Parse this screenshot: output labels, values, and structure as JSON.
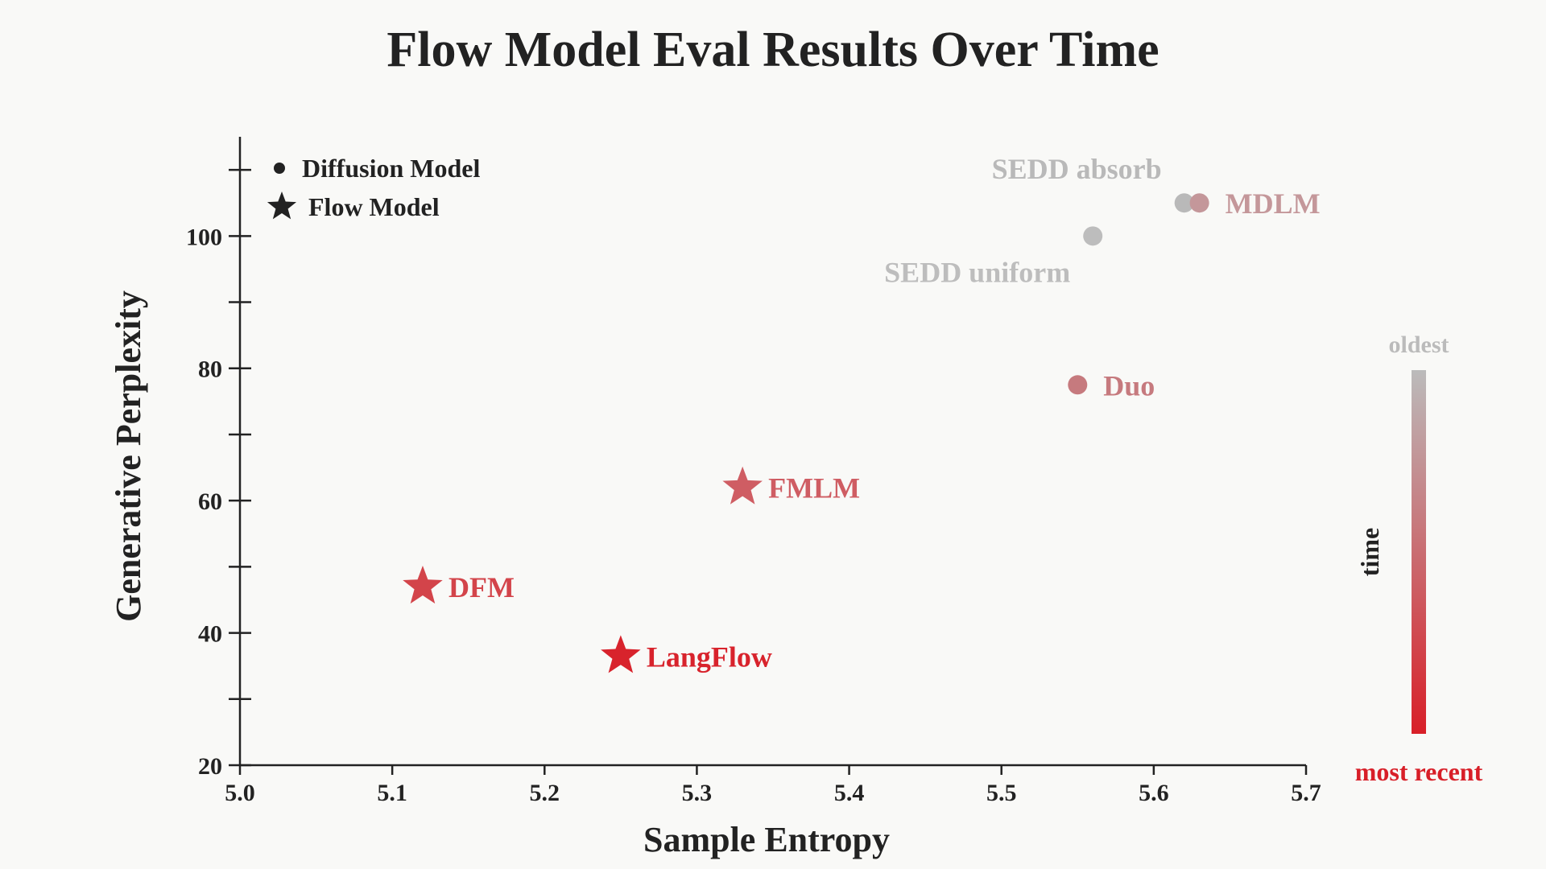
{
  "chart_data": {
    "type": "scatter",
    "title": "Flow Model Eval Results Over Time",
    "xlabel": "Sample Entropy",
    "ylabel": "Generative Perplexity",
    "xlim": [
      5.0,
      5.7
    ],
    "ylim": [
      20,
      115
    ],
    "x_ticks": [
      "5.0",
      "5.1",
      "5.2",
      "5.3",
      "5.4",
      "5.5",
      "5.6",
      "5.7"
    ],
    "x_tick_values": [
      5.0,
      5.1,
      5.2,
      5.3,
      5.4,
      5.5,
      5.6,
      5.7
    ],
    "y_ticks": [
      "20",
      "40",
      "60",
      "80",
      "100"
    ],
    "y_tick_values": [
      20,
      40,
      60,
      80,
      100
    ],
    "y_minor_tick_values": [
      30,
      50,
      70,
      90,
      110
    ],
    "grid": false,
    "legend": {
      "placement": "top-left",
      "entries": [
        {
          "label": "Diffusion Model",
          "marker": "circle"
        },
        {
          "label": "Flow Model",
          "marker": "star"
        }
      ]
    },
    "points": [
      {
        "label": "SEDD absorb",
        "x": 5.62,
        "y": 105,
        "marker": "circle",
        "color": "#b9b9b9",
        "label_pos": "upper-left"
      },
      {
        "label": "MDLM",
        "x": 5.63,
        "y": 105,
        "marker": "circle",
        "color": "#c4979a",
        "label_pos": "right"
      },
      {
        "label": "SEDD uniform",
        "x": 5.56,
        "y": 100,
        "marker": "circle",
        "color": "#bdbdbd",
        "label_pos": "lower-left"
      },
      {
        "label": "Duo",
        "x": 5.55,
        "y": 77.5,
        "marker": "circle",
        "color": "#c67a7e",
        "label_pos": "right"
      },
      {
        "label": "FMLM",
        "x": 5.33,
        "y": 62,
        "marker": "star",
        "color": "#cf5d63",
        "label_pos": "right"
      },
      {
        "label": "DFM",
        "x": 5.12,
        "y": 47,
        "marker": "star",
        "color": "#d3444a",
        "label_pos": "right"
      },
      {
        "label": "LangFlow",
        "x": 5.25,
        "y": 36.5,
        "marker": "star",
        "color": "#d8232c",
        "label_pos": "right"
      }
    ],
    "colorbar": {
      "label": "time",
      "top_label": "oldest",
      "bottom_label": "most recent",
      "top_color": "#bbbbbb",
      "bottom_color": "#d81f28"
    },
    "colors": {
      "axis": "#222222",
      "text": "#222222"
    }
  }
}
